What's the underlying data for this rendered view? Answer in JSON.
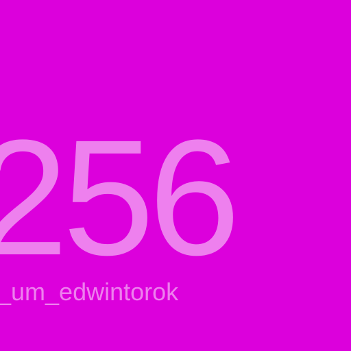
{
  "colors": {
    "background": "#dc00dc",
    "text": "#ee80ee"
  },
  "display": {
    "number": "256",
    "label": "t_um_edwintorok"
  }
}
